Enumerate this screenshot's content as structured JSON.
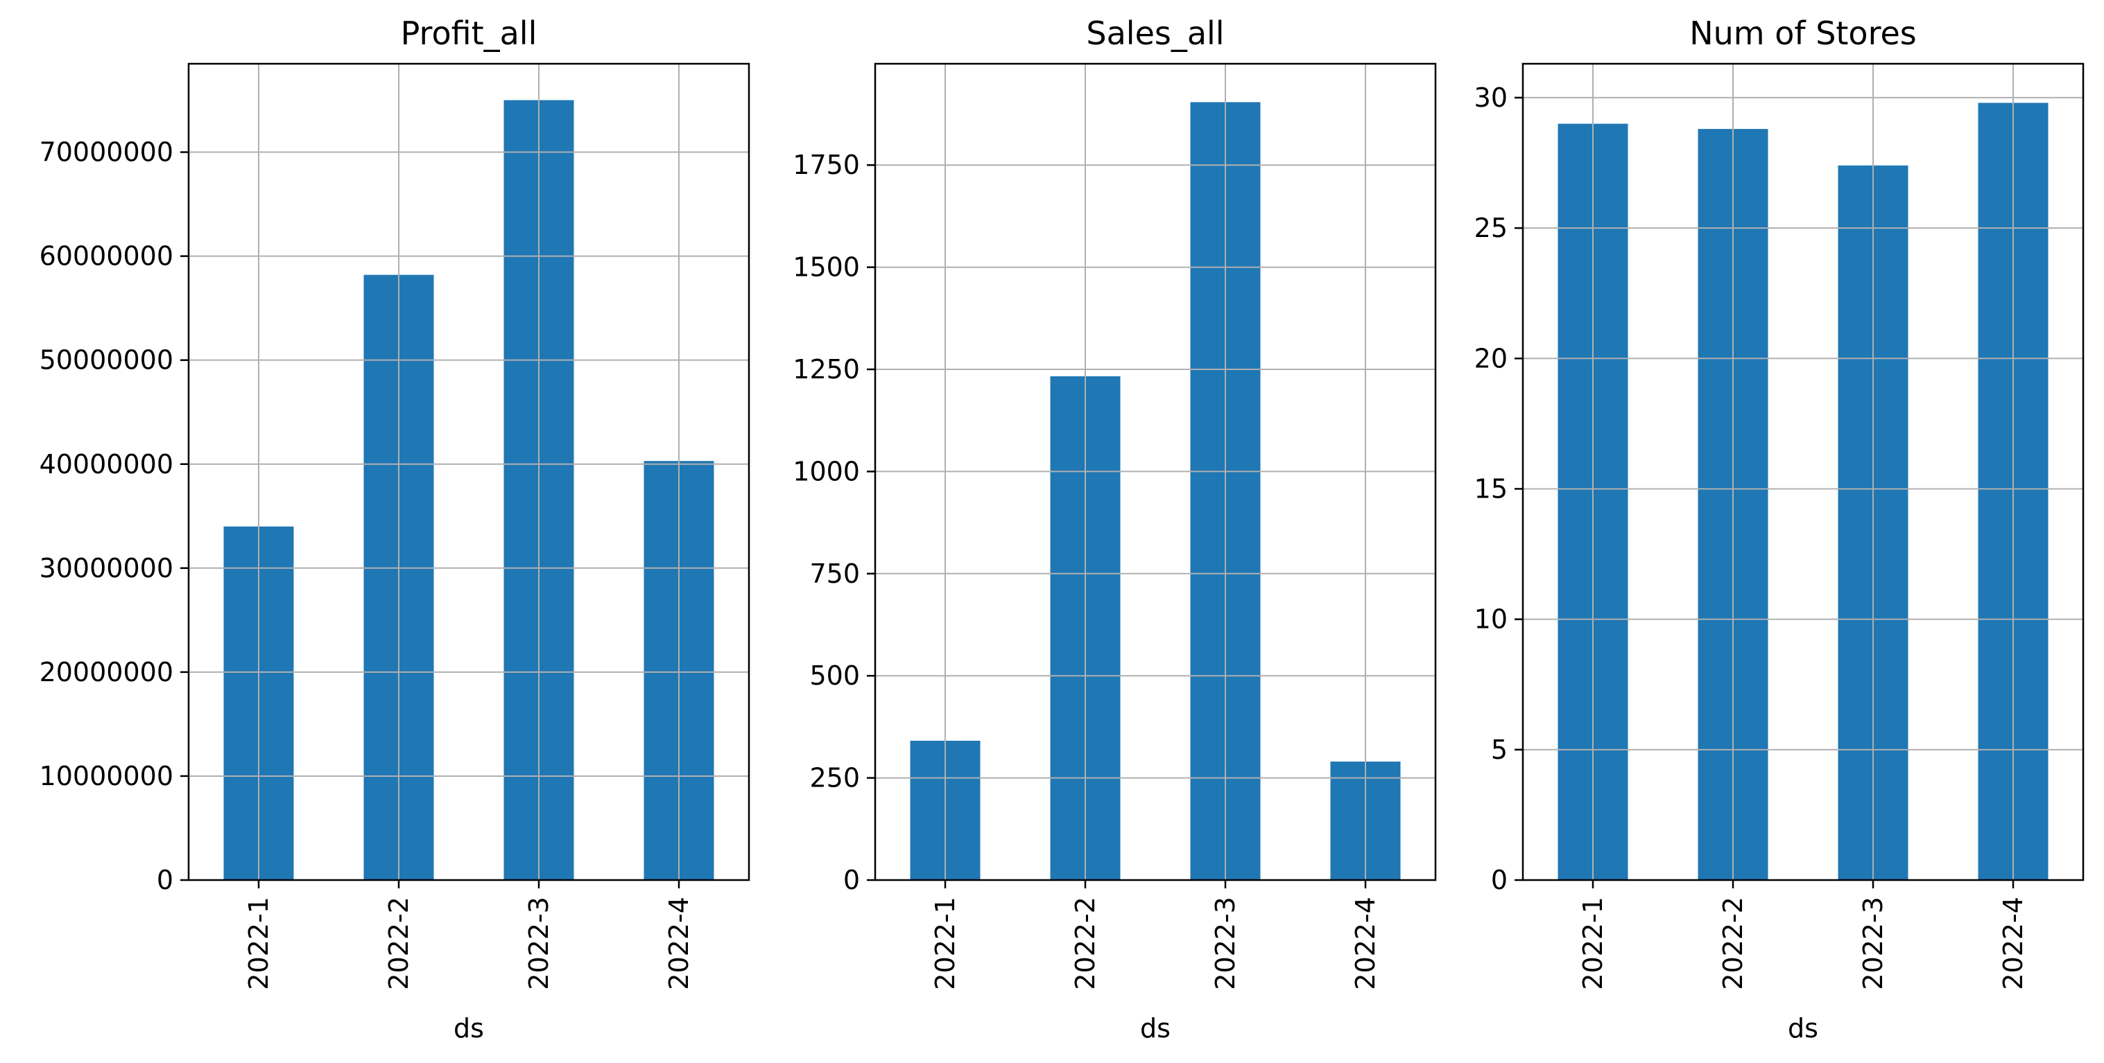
{
  "colors": {
    "bar": "#1f77b4",
    "grid": "#b0b0b0",
    "axis": "#000000",
    "background": "#ffffff"
  },
  "chart_data": [
    {
      "type": "bar",
      "title": "Profit_all",
      "xlabel": "ds",
      "ylabel": "",
      "categories": [
        "2022-1",
        "2022-2",
        "2022-3",
        "2022-4"
      ],
      "values": [
        34000000,
        58200000,
        75000000,
        40300000
      ],
      "ylim": [
        0,
        78500000
      ],
      "yticks": [
        0,
        10000000,
        20000000,
        30000000,
        40000000,
        50000000,
        60000000,
        70000000
      ],
      "ytick_labels": [
        "0",
        "10000000",
        "20000000",
        "30000000",
        "40000000",
        "50000000",
        "60000000",
        "70000000"
      ],
      "grid": true,
      "legend": "none"
    },
    {
      "type": "bar",
      "title": "Sales_all",
      "xlabel": "ds",
      "ylabel": "",
      "categories": [
        "2022-1",
        "2022-2",
        "2022-3",
        "2022-4"
      ],
      "values": [
        341,
        1233,
        1904,
        290
      ],
      "ylim": [
        0,
        1998
      ],
      "yticks": [
        0,
        250,
        500,
        750,
        1000,
        1250,
        1500,
        1750
      ],
      "ytick_labels": [
        "0",
        "250",
        "500",
        "750",
        "1000",
        "1250",
        "1500",
        "1750"
      ],
      "grid": true,
      "legend": "none"
    },
    {
      "type": "bar",
      "title": "Num of Stores",
      "xlabel": "ds",
      "ylabel": "",
      "categories": [
        "2022-1",
        "2022-2",
        "2022-3",
        "2022-4"
      ],
      "values": [
        29.0,
        28.8,
        27.4,
        29.8
      ],
      "ylim": [
        0,
        31.3
      ],
      "yticks": [
        0,
        5,
        10,
        15,
        20,
        25,
        30
      ],
      "ytick_labels": [
        "0",
        "5",
        "10",
        "15",
        "20",
        "25",
        "30"
      ],
      "grid": true,
      "legend": "none"
    }
  ]
}
